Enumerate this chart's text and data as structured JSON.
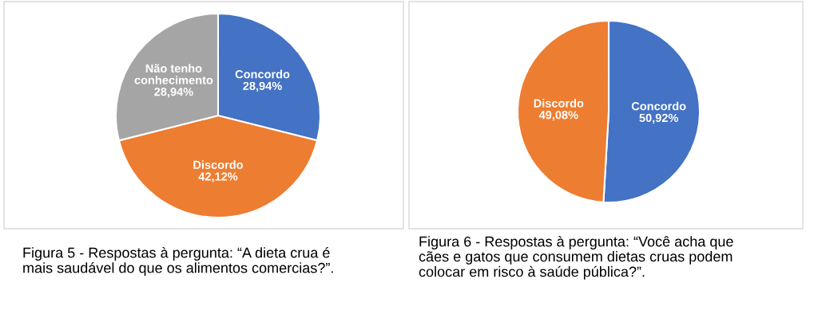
{
  "chart_data": [
    {
      "type": "pie",
      "categories": [
        "Concordo",
        "Discordo",
        "Não tenho\nconhecimento"
      ],
      "values": [
        28.94,
        42.12,
        28.94
      ],
      "colors": [
        "#4472c4",
        "#ed7d31",
        "#a5a5a5"
      ],
      "value_labels": [
        "28,94%",
        "42,12%",
        "28,94%"
      ],
      "legend": false,
      "annotations": [
        "Figura 5 - Respostas à pergunta: “A dieta crua é\nmais saudável do que os alimentos comercias?”."
      ]
    },
    {
      "type": "pie",
      "categories": [
        "Concordo",
        "Discordo"
      ],
      "values": [
        50.92,
        49.08
      ],
      "colors": [
        "#4472c4",
        "#ed7d31"
      ],
      "value_labels": [
        "50,92%",
        "49,08%"
      ],
      "legend": false,
      "annotations": [
        "Figura 6 - Respostas à pergunta: “Você acha que\ncães e gatos que consumem dietas cruas podem\ncolocar em risco à saúde pública?”."
      ]
    }
  ]
}
